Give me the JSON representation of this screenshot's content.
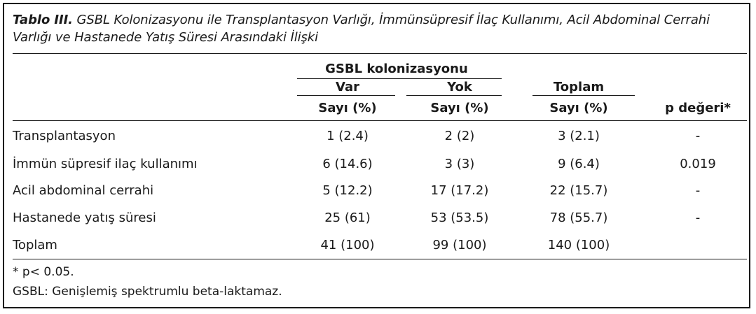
{
  "caption": {
    "lead": "Tablo III.",
    "text": " GSBL Kolonizasyonu ile Transplantasyon Varlığı, İmmünsüpresif İlaç Kullanımı, Acil Abdominal Cerrahi Varlığı ve Hastanede Yatış Süresi Arasındaki İlişki"
  },
  "header": {
    "group": "GSBL kolonizasyonu",
    "var": "Var",
    "yok": "Yok",
    "toplam": "Toplam",
    "sayi_var": "Sayı (%)",
    "sayi_yok": "Sayı (%)",
    "sayi_toplam": "Sayı (%)",
    "p": "p değeri*"
  },
  "rows": [
    {
      "label": "Transplantasyon",
      "var": "1 (2.4)",
      "yok": "2 (2)",
      "toplam": "3 (2.1)",
      "p": "-"
    },
    {
      "label": "İmmün süpresif ilaç kullanımı",
      "var": "6 (14.6)",
      "yok": "3 (3)",
      "toplam": "9 (6.4)",
      "p": "0.019"
    },
    {
      "label": "Acil abdominal cerrahi",
      "var": "5 (12.2)",
      "yok": "17 (17.2)",
      "toplam": "22 (15.7)",
      "p": "-"
    },
    {
      "label": "Hastanede yatış süresi",
      "var": "25 (61)",
      "yok": "53 (53.5)",
      "toplam": "78 (55.7)",
      "p": "-"
    },
    {
      "label": "Toplam",
      "var": "41 (100)",
      "yok": "99 (100)",
      "toplam": "140 (100)",
      "p": ""
    }
  ],
  "footnotes": [
    "* p< 0.05.",
    "GSBL: Genişlemiş spektrumlu beta-laktamaz."
  ]
}
